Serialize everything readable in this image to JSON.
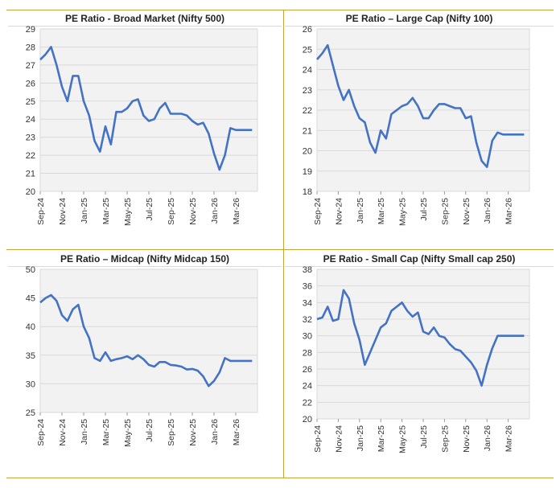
{
  "chart_data": [
    {
      "type": "line",
      "title": "PE Ratio - Broad Market (Nifty 500)",
      "ylim": [
        20,
        29
      ],
      "yticks": [
        "20",
        "21",
        "22",
        "23",
        "24",
        "25",
        "26",
        "27",
        "28",
        "29"
      ],
      "xticks": [
        "Sep-24",
        "Nov-24",
        "Jan-25",
        "Mar-25",
        "May-25",
        "Jul-25",
        "Sep-25",
        "Nov-25",
        "Jan-26",
        "Mar-26"
      ],
      "grid": true,
      "color": "#4472c4",
      "series": [
        {
          "x": [
            0,
            0.5,
            1,
            1.5,
            2,
            2.5,
            3,
            3.5,
            4,
            4.5,
            5,
            5.5,
            6,
            6.5,
            7,
            7.5,
            8,
            8.5,
            9,
            9.5,
            10,
            10.5,
            11,
            11.5,
            12,
            12.5,
            13,
            13.5,
            14,
            14.5,
            15,
            15.5,
            16,
            16.5,
            17,
            17.5,
            18,
            18.5,
            19,
            19.5,
            20
          ],
          "values": [
            27.3,
            27.6,
            28.0,
            27.0,
            25.8,
            25.0,
            26.4,
            26.4,
            25.0,
            24.2,
            22.8,
            22.2,
            23.6,
            22.6,
            24.4,
            24.4,
            24.6,
            25.0,
            25.1,
            24.2,
            23.9,
            24.0,
            24.6,
            24.9,
            24.3,
            24.3,
            24.3,
            24.2,
            23.9,
            23.7,
            23.8,
            23.2,
            22.1,
            21.2,
            22.0,
            23.5,
            23.4,
            23.4,
            23.4,
            23.4,
            23.4
          ]
        }
      ]
    },
    {
      "type": "line",
      "title": "PE Ratio – Large Cap (Nifty 100)",
      "ylim": [
        18,
        26
      ],
      "yticks": [
        "18",
        "19",
        "20",
        "21",
        "22",
        "23",
        "24",
        "25",
        "26"
      ],
      "xticks": [
        "Sep-24",
        "Nov-24",
        "Jan-25",
        "Mar-25",
        "May-25",
        "Jul-25",
        "Sep-25",
        "Nov-25",
        "Jan-26",
        "Mar-26"
      ],
      "grid": true,
      "color": "#4472c4",
      "series": [
        {
          "x": [
            0,
            0.5,
            1,
            1.5,
            2,
            2.5,
            3,
            3.5,
            4,
            4.5,
            5,
            5.5,
            6,
            6.5,
            7,
            7.5,
            8,
            8.5,
            9,
            9.5,
            10,
            10.5,
            11,
            11.5,
            12,
            12.5,
            13,
            13.5,
            14,
            14.5,
            15,
            15.5,
            16,
            16.5,
            17,
            17.5,
            18,
            18.5,
            19,
            19.5,
            20
          ],
          "values": [
            24.5,
            24.8,
            25.2,
            24.2,
            23.2,
            22.5,
            23.0,
            22.2,
            21.6,
            21.4,
            20.4,
            19.9,
            21.0,
            20.6,
            21.8,
            22.0,
            22.2,
            22.3,
            22.6,
            22.2,
            21.6,
            21.6,
            22.0,
            22.3,
            22.3,
            22.2,
            22.1,
            22.1,
            21.6,
            21.7,
            20.4,
            19.5,
            19.2,
            20.5,
            20.9,
            20.8,
            20.8,
            20.8,
            20.8,
            20.8,
            20.8
          ]
        }
      ]
    },
    {
      "type": "line",
      "title": "PE Ratio – Midcap (Nifty Midcap 150)",
      "ylim": [
        25,
        50
      ],
      "yticks": [
        "25",
        "30",
        "35",
        "40",
        "45",
        "50"
      ],
      "xticks": [
        "Sep-24",
        "Nov-24",
        "Jan-25",
        "Mar-25",
        "May-25",
        "Jul-25",
        "Sep-25",
        "Nov-25",
        "Jan-26",
        "Mar-26"
      ],
      "grid": true,
      "color": "#4472c4",
      "series": [
        {
          "x": [
            0,
            0.5,
            1,
            1.5,
            2,
            2.5,
            3,
            3.5,
            4,
            4.5,
            5,
            5.5,
            6,
            6.5,
            7,
            7.5,
            8,
            8.5,
            9,
            9.5,
            10,
            10.5,
            11,
            11.5,
            12,
            12.5,
            13,
            13.5,
            14,
            14.5,
            15,
            15.5,
            16,
            16.5,
            17,
            17.5,
            18,
            18.5,
            19,
            19.5,
            20
          ],
          "values": [
            44.2,
            45.0,
            45.5,
            44.5,
            42.0,
            41.0,
            43.0,
            43.8,
            40.0,
            38.0,
            34.5,
            34.0,
            35.5,
            34.0,
            34.3,
            34.5,
            34.8,
            34.3,
            35.0,
            34.3,
            33.3,
            33.0,
            33.8,
            33.8,
            33.3,
            33.2,
            33.0,
            32.5,
            32.6,
            32.3,
            31.3,
            29.6,
            30.5,
            32.0,
            34.5,
            34.0,
            34.0,
            34.0,
            34.0,
            34.0,
            34.0
          ]
        }
      ]
    },
    {
      "type": "line",
      "title": "PE Ratio - Small Cap (Nifty Small cap 250)",
      "ylim": [
        20,
        38
      ],
      "yticks": [
        "20",
        "22",
        "24",
        "26",
        "28",
        "30",
        "32",
        "34",
        "36",
        "38"
      ],
      "xticks": [
        "Sep-24",
        "Nov-24",
        "Jan-25",
        "Mar-25",
        "May-25",
        "Jul-25",
        "Sep-25",
        "Nov-25",
        "Jan-26",
        "Mar-26"
      ],
      "grid": true,
      "color": "#4472c4",
      "series": [
        {
          "x": [
            0,
            0.5,
            1,
            1.5,
            2,
            2.5,
            3,
            3.5,
            4,
            4.5,
            5,
            5.5,
            6,
            6.5,
            7,
            7.5,
            8,
            8.5,
            9,
            9.5,
            10,
            10.5,
            11,
            11.5,
            12,
            12.5,
            13,
            13.5,
            14,
            14.5,
            15,
            15.5,
            16,
            16.5,
            17,
            17.5,
            18,
            18.5,
            19,
            19.5,
            20
          ],
          "values": [
            32.0,
            32.2,
            33.5,
            31.8,
            32.0,
            35.5,
            34.5,
            31.5,
            29.5,
            26.5,
            28.0,
            29.5,
            31.0,
            31.5,
            33.0,
            33.5,
            34.0,
            33.0,
            32.3,
            32.8,
            30.5,
            30.2,
            31.0,
            30.0,
            29.8,
            29.0,
            28.4,
            28.2,
            27.5,
            26.8,
            25.8,
            24.0,
            26.5,
            28.5,
            30.0,
            30.0,
            30.0,
            30.0,
            30.0,
            30.0,
            30.0
          ]
        }
      ]
    }
  ]
}
